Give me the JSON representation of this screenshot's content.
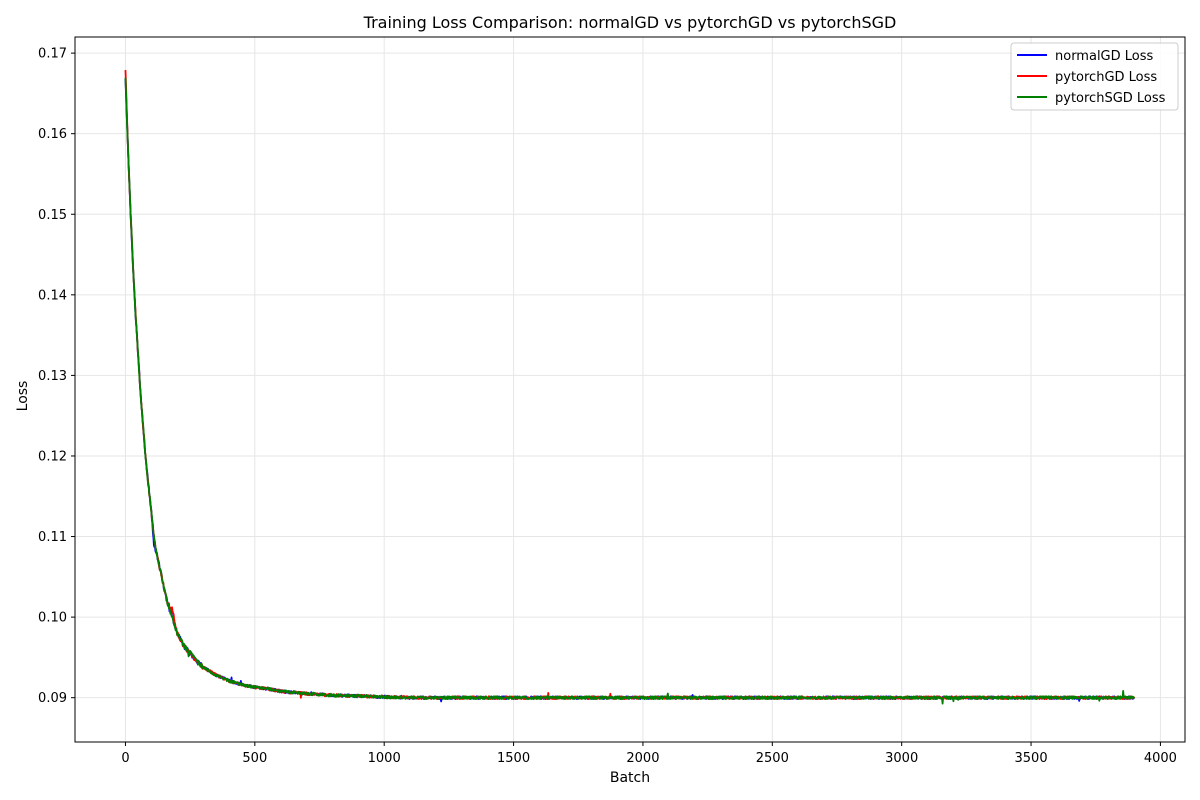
{
  "chart_data": {
    "type": "line",
    "title": "Training Loss Comparison: normalGD vs pytorchGD vs pytorchSGD",
    "xlabel": "Batch",
    "ylabel": "Loss",
    "xlim": [
      -195,
      4095
    ],
    "ylim": [
      0.0845,
      0.172
    ],
    "xticks": [
      0,
      500,
      1000,
      1500,
      2000,
      2500,
      3000,
      3500,
      4000
    ],
    "yticks": [
      0.09,
      0.1,
      0.11,
      0.12,
      0.13,
      0.14,
      0.15,
      0.16,
      0.17
    ],
    "grid": true,
    "legend_position": "top-right",
    "x": [
      0,
      10,
      20,
      30,
      40,
      50,
      60,
      70,
      80,
      90,
      100,
      110,
      120,
      140,
      160,
      180,
      200,
      225,
      250,
      275,
      300,
      350,
      400,
      450,
      500,
      550,
      600,
      700,
      800,
      900,
      1000,
      1100,
      1200,
      1300,
      1400,
      1500,
      1600,
      1700,
      1800,
      1900,
      2000,
      2100,
      2200,
      2300,
      2400,
      2500,
      2600,
      2700,
      2800,
      2900,
      3000,
      3100,
      3200,
      3300,
      3400,
      3500,
      3600,
      3700,
      3800,
      3900
    ],
    "series": [
      {
        "name": "normalGD Loss",
        "color": "#0000ff",
        "values": [
          0.167,
          0.158,
          0.15,
          0.143,
          0.137,
          0.132,
          0.127,
          0.123,
          0.119,
          0.116,
          0.113,
          0.109,
          0.108,
          0.105,
          0.102,
          0.1,
          0.098,
          0.0965,
          0.0955,
          0.0945,
          0.0938,
          0.0928,
          0.0921,
          0.0916,
          0.0913,
          0.0911,
          0.0908,
          0.0905,
          0.0903,
          0.0902,
          0.0901,
          0.09,
          0.09,
          0.09,
          0.09,
          0.09,
          0.09,
          0.09,
          0.09,
          0.09,
          0.09,
          0.09,
          0.09,
          0.09,
          0.09,
          0.09,
          0.09,
          0.09,
          0.09,
          0.09,
          0.09,
          0.09,
          0.09,
          0.09,
          0.09,
          0.09,
          0.09,
          0.09,
          0.09,
          0.09
        ]
      },
      {
        "name": "pytorchGD Loss",
        "color": "#ff0000",
        "values": [
          0.168,
          0.158,
          0.15,
          0.143,
          0.137,
          0.132,
          0.127,
          0.123,
          0.119,
          0.116,
          0.113,
          0.11,
          0.108,
          0.105,
          0.102,
          0.101,
          0.098,
          0.0965,
          0.0955,
          0.0945,
          0.0938,
          0.0928,
          0.0921,
          0.0916,
          0.0913,
          0.0911,
          0.0908,
          0.0905,
          0.0903,
          0.0902,
          0.0901,
          0.09,
          0.09,
          0.09,
          0.09,
          0.09,
          0.09,
          0.09,
          0.09,
          0.09,
          0.09,
          0.09,
          0.09,
          0.09,
          0.09,
          0.09,
          0.09,
          0.09,
          0.09,
          0.09,
          0.09,
          0.09,
          0.09,
          0.09,
          0.09,
          0.09,
          0.09,
          0.09,
          0.09,
          0.09
        ]
      },
      {
        "name": "pytorchSGD Loss",
        "color": "#008000",
        "values": [
          0.167,
          0.158,
          0.15,
          0.143,
          0.137,
          0.132,
          0.127,
          0.123,
          0.119,
          0.116,
          0.113,
          0.11,
          0.108,
          0.105,
          0.102,
          0.1,
          0.098,
          0.0965,
          0.0955,
          0.0945,
          0.0938,
          0.0928,
          0.0921,
          0.0916,
          0.0913,
          0.0911,
          0.0908,
          0.0905,
          0.0903,
          0.0902,
          0.0901,
          0.09,
          0.09,
          0.09,
          0.09,
          0.09,
          0.09,
          0.09,
          0.09,
          0.09,
          0.09,
          0.09,
          0.09,
          0.09,
          0.09,
          0.09,
          0.09,
          0.09,
          0.09,
          0.09,
          0.09,
          0.09,
          0.09,
          0.09,
          0.09,
          0.09,
          0.09,
          0.09,
          0.09,
          0.09
        ]
      }
    ]
  }
}
